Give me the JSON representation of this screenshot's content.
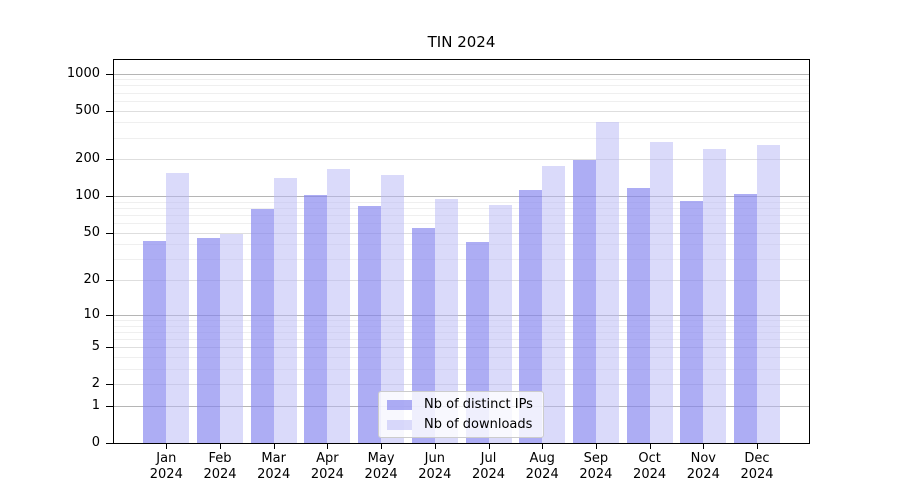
{
  "figure": {
    "title": "TIN 2024"
  },
  "chart_data": {
    "type": "bar",
    "title": "TIN 2024",
    "yscale": "log1p",
    "grid": true,
    "legend_position": "bottom-center",
    "categories": [
      "Jan 2024",
      "Feb 2024",
      "Mar 2024",
      "Apr 2024",
      "May 2024",
      "Jun 2024",
      "Jul 2024",
      "Aug 2024",
      "Sep 2024",
      "Oct 2024",
      "Nov 2024",
      "Dec 2024"
    ],
    "series": [
      {
        "name": "Nb of distinct IPs",
        "color": "rgba(130,130,238,0.66)",
        "approx_hex": "#aaaaf4",
        "values": [
          43,
          45,
          78,
          103,
          83,
          55,
          42,
          113,
          196,
          117,
          91,
          104
        ]
      },
      {
        "name": "Nb of downloads",
        "color": "rgba(185,185,245,0.52)",
        "approx_hex": "#dbdbfa",
        "values": [
          155,
          49,
          141,
          167,
          148,
          95,
          85,
          178,
          407,
          278,
          242,
          264
        ]
      }
    ],
    "y_axis": {
      "tick_labels": [
        "1000",
        "500",
        "200",
        "100",
        "50",
        "20",
        "10",
        "5",
        "2",
        "1",
        "0"
      ],
      "tick_values": [
        1000,
        500,
        200,
        100,
        50,
        20,
        10,
        5,
        2,
        1,
        0
      ],
      "major_grid_values": [
        1000,
        100,
        10,
        1
      ],
      "mid_grid_values": [
        500,
        200,
        50,
        20,
        5,
        2
      ],
      "minor_grid_values": [
        3,
        4,
        6,
        7,
        8,
        9,
        30,
        40,
        60,
        70,
        80,
        90,
        300,
        400,
        600,
        700,
        800,
        900
      ],
      "ylim": [
        0,
        1310
      ]
    },
    "xlabel": "",
    "ylabel": ""
  }
}
